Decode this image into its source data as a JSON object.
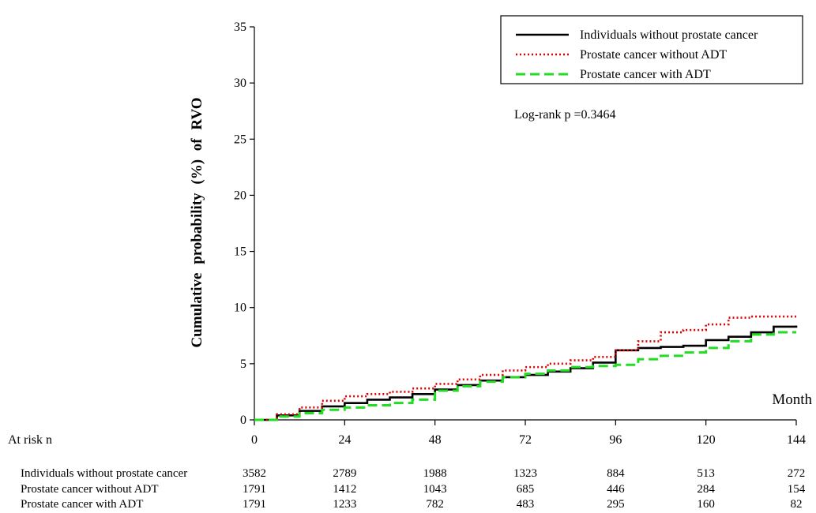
{
  "chart_data": {
    "type": "line",
    "ylabel": "Cumulative probability (%) of RVO",
    "xlabel": "Month",
    "xlim": [
      0,
      144
    ],
    "ylim": [
      0,
      35
    ],
    "xticks": [
      0,
      24,
      48,
      72,
      96,
      120,
      144
    ],
    "yticks": [
      0,
      5,
      10,
      15,
      20,
      25,
      30,
      35
    ],
    "xtick_labels": [
      "0",
      "24",
      "48",
      "72",
      "96",
      "120",
      "144"
    ],
    "ytick_labels": [
      "0",
      "5",
      "10",
      "15",
      "20",
      "25",
      "30",
      "35"
    ],
    "legend_position": "top-right",
    "annotation": "Log-rank p =0.3464",
    "series": [
      {
        "name": "Individuals without prostate cancer",
        "color": "#000000",
        "style": "solid",
        "x": [
          0,
          6,
          12,
          18,
          24,
          30,
          36,
          42,
          48,
          54,
          60,
          66,
          72,
          78,
          84,
          90,
          96,
          102,
          108,
          114,
          120,
          126,
          132,
          138,
          144
        ],
        "y": [
          0,
          0.4,
          0.8,
          1.2,
          1.5,
          1.8,
          2.0,
          2.3,
          2.7,
          3.1,
          3.5,
          3.8,
          4.0,
          4.3,
          4.6,
          5.1,
          6.2,
          6.4,
          6.5,
          6.6,
          7.1,
          7.4,
          7.8,
          8.3,
          8.4
        ]
      },
      {
        "name": "Prostate cancer without ADT",
        "color": "#dd0000",
        "style": "dotted",
        "x": [
          0,
          6,
          12,
          18,
          24,
          30,
          36,
          42,
          48,
          54,
          60,
          66,
          72,
          78,
          84,
          90,
          96,
          102,
          108,
          114,
          120,
          126,
          132,
          138,
          144
        ],
        "y": [
          0,
          0.5,
          1.1,
          1.7,
          2.1,
          2.3,
          2.5,
          2.8,
          3.2,
          3.6,
          4.0,
          4.4,
          4.7,
          5.0,
          5.3,
          5.6,
          6.2,
          7.0,
          7.8,
          8.0,
          8.5,
          9.1,
          9.2,
          9.2,
          9.2
        ]
      },
      {
        "name": "Prostate cancer with ADT",
        "color": "#22dd22",
        "style": "dashed",
        "x": [
          0,
          6,
          12,
          18,
          24,
          30,
          36,
          42,
          48,
          54,
          60,
          66,
          72,
          78,
          84,
          90,
          96,
          102,
          108,
          114,
          120,
          126,
          132,
          138,
          144
        ],
        "y": [
          0,
          0.3,
          0.6,
          0.9,
          1.1,
          1.3,
          1.5,
          1.8,
          2.6,
          3.0,
          3.4,
          3.8,
          4.1,
          4.4,
          4.7,
          4.8,
          4.9,
          5.4,
          5.7,
          6.0,
          6.4,
          7.0,
          7.6,
          7.8,
          7.8
        ]
      }
    ],
    "at_risk": {
      "title": "At risk n",
      "rows": [
        {
          "label": "Individuals without prostate cancer",
          "values": [
            "3582",
            "2789",
            "1988",
            "1323",
            "884",
            "513",
            "272"
          ]
        },
        {
          "label": "Prostate cancer without ADT",
          "values": [
            "1791",
            "1412",
            "1043",
            "685",
            "446",
            "284",
            "154"
          ]
        },
        {
          "label": "Prostate cancer with ADT",
          "values": [
            "1791",
            "1233",
            "782",
            "483",
            "295",
            "160",
            "82"
          ]
        }
      ]
    }
  }
}
